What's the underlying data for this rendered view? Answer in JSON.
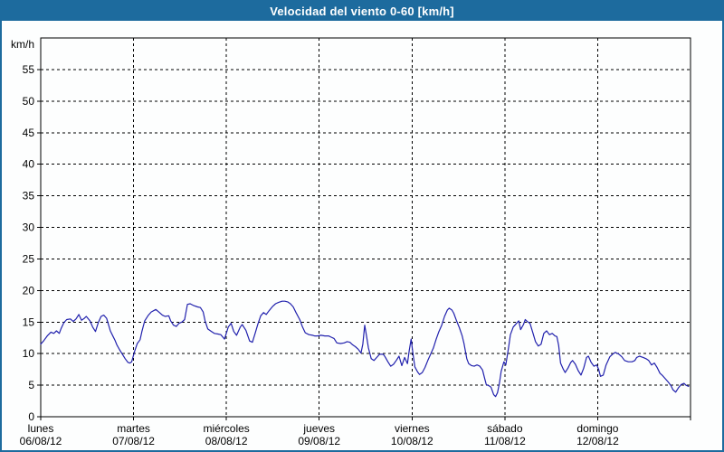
{
  "window": {
    "title": "Velocidad del viento 0-60 [km/h]"
  },
  "colors": {
    "titlebar_bg": "#1d6b9e",
    "frame_border": "#1d6b9e",
    "title_text": "#ffffff",
    "plot_bg": "#fdfefe",
    "axis": "#000000",
    "grid": "#000000",
    "label_text": "#000000",
    "series_line": "#2121ad"
  },
  "chart_data": {
    "type": "line",
    "title": "Velocidad del viento 0-60 [km/h]",
    "ylabel": "km/h",
    "xlabel": "",
    "ylim": [
      0,
      60
    ],
    "ytick_step": 5,
    "yticks": [
      0,
      5,
      10,
      15,
      20,
      25,
      30,
      35,
      40,
      45,
      50,
      55
    ],
    "grid": "dashed",
    "legend_position": "none",
    "x_unit": "days",
    "x_range_days": 7,
    "day_labels": [
      {
        "name": "lunes",
        "date": "06/08/12",
        "day_index": 0
      },
      {
        "name": "martes",
        "date": "07/08/12",
        "day_index": 1
      },
      {
        "name": "miércoles",
        "date": "08/08/12",
        "day_index": 2
      },
      {
        "name": "jueves",
        "date": "09/08/12",
        "day_index": 3
      },
      {
        "name": "viernes",
        "date": "10/08/12",
        "day_index": 4
      },
      {
        "name": "sábado",
        "date": "11/08/12",
        "day_index": 5
      },
      {
        "name": "domingo",
        "date": "12/08/12",
        "day_index": 6
      }
    ],
    "series": [
      {
        "name": "velocidad del viento",
        "units": "km/h",
        "color": "#2121ad",
        "points": [
          [
            0,
            11.5
          ],
          [
            0.03,
            12
          ],
          [
            0.07,
            12.8
          ],
          [
            0.11,
            13.4
          ],
          [
            0.14,
            13.2
          ],
          [
            0.17,
            13.6
          ],
          [
            0.2,
            13.2
          ],
          [
            0.22,
            14
          ],
          [
            0.25,
            14.9
          ],
          [
            0.28,
            15.4
          ],
          [
            0.32,
            15.5
          ],
          [
            0.35,
            15.1
          ],
          [
            0.38,
            15.5
          ],
          [
            0.41,
            16.2
          ],
          [
            0.44,
            15.3
          ],
          [
            0.47,
            15.6
          ],
          [
            0.49,
            15.9
          ],
          [
            0.53,
            15.2
          ],
          [
            0.56,
            14.2
          ],
          [
            0.59,
            13.5
          ],
          [
            0.62,
            14.9
          ],
          [
            0.65,
            15.9
          ],
          [
            0.68,
            16.1
          ],
          [
            0.71,
            15.6
          ],
          [
            0.75,
            13.6
          ],
          [
            0.78,
            12.7
          ],
          [
            0.8,
            12.1
          ],
          [
            0.82,
            11.4
          ],
          [
            0.85,
            10.6
          ],
          [
            0.88,
            9.9
          ],
          [
            0.91,
            9.2
          ],
          [
            0.94,
            8.6
          ],
          [
            0.96,
            8.5
          ],
          [
            0.98,
            8.7
          ],
          [
            1.01,
            10.3
          ],
          [
            1.04,
            11.6
          ],
          [
            1.07,
            12.2
          ],
          [
            1.09,
            13.5
          ],
          [
            1.12,
            15.2
          ],
          [
            1.16,
            16.1
          ],
          [
            1.19,
            16.6
          ],
          [
            1.24,
            17
          ],
          [
            1.28,
            16.5
          ],
          [
            1.31,
            16.1
          ],
          [
            1.34,
            15.9
          ],
          [
            1.38,
            16
          ],
          [
            1.4,
            15.2
          ],
          [
            1.43,
            14.5
          ],
          [
            1.46,
            14.3
          ],
          [
            1.49,
            14.8
          ],
          [
            1.52,
            15
          ],
          [
            1.55,
            15.4
          ],
          [
            1.58,
            17.8
          ],
          [
            1.61,
            17.9
          ],
          [
            1.65,
            17.6
          ],
          [
            1.69,
            17.4
          ],
          [
            1.72,
            17.3
          ],
          [
            1.75,
            16.6
          ],
          [
            1.77,
            15.2
          ],
          [
            1.8,
            13.9
          ],
          [
            1.84,
            13.5
          ],
          [
            1.87,
            13.2
          ],
          [
            1.91,
            13.1
          ],
          [
            1.94,
            13
          ],
          [
            1.98,
            12.3
          ],
          [
            2.02,
            14.2
          ],
          [
            2.05,
            14.8
          ],
          [
            2.08,
            13.5
          ],
          [
            2.11,
            12.9
          ],
          [
            2.15,
            14.2
          ],
          [
            2.17,
            14.6
          ],
          [
            2.21,
            13.7
          ],
          [
            2.25,
            12
          ],
          [
            2.28,
            11.8
          ],
          [
            2.31,
            13.2
          ],
          [
            2.34,
            14.7
          ],
          [
            2.37,
            16
          ],
          [
            2.4,
            16.5
          ],
          [
            2.43,
            16.2
          ],
          [
            2.46,
            16.8
          ],
          [
            2.5,
            17.5
          ],
          [
            2.53,
            17.9
          ],
          [
            2.56,
            18.1
          ],
          [
            2.6,
            18.3
          ],
          [
            2.63,
            18.3
          ],
          [
            2.66,
            18.2
          ],
          [
            2.69,
            17.9
          ],
          [
            2.72,
            17.4
          ],
          [
            2.75,
            16.5
          ],
          [
            2.79,
            15.4
          ],
          [
            2.82,
            14.2
          ],
          [
            2.85,
            13.3
          ],
          [
            2.89,
            13
          ],
          [
            2.93,
            12.9
          ],
          [
            2.95,
            12.8
          ],
          [
            2.98,
            12.8
          ],
          [
            3.02,
            12.9
          ],
          [
            3.06,
            12.8
          ],
          [
            3.1,
            12.8
          ],
          [
            3.13,
            12.6
          ],
          [
            3.16,
            12.4
          ],
          [
            3.19,
            11.7
          ],
          [
            3.23,
            11.6
          ],
          [
            3.27,
            11.7
          ],
          [
            3.3,
            11.9
          ],
          [
            3.33,
            11.8
          ],
          [
            3.36,
            11.4
          ],
          [
            3.39,
            11.1
          ],
          [
            3.42,
            10.7
          ],
          [
            3.45,
            10.1
          ],
          [
            3.47,
            11.5
          ],
          [
            3.49,
            14.5
          ],
          [
            3.51,
            12.8
          ],
          [
            3.53,
            10.9
          ],
          [
            3.56,
            9.2
          ],
          [
            3.59,
            8.9
          ],
          [
            3.62,
            9.4
          ],
          [
            3.65,
            9.9
          ],
          [
            3.69,
            9.9
          ],
          [
            3.71,
            9.5
          ],
          [
            3.74,
            8.7
          ],
          [
            3.77,
            8
          ],
          [
            3.8,
            8.3
          ],
          [
            3.83,
            8.9
          ],
          [
            3.86,
            9.6
          ],
          [
            3.89,
            8.1
          ],
          [
            3.92,
            9.4
          ],
          [
            3.95,
            8.4
          ],
          [
            3.97,
            10.5
          ],
          [
            3.99,
            12.3
          ],
          [
            4.01,
            10
          ],
          [
            4.03,
            7.9
          ],
          [
            4.06,
            7.1
          ],
          [
            4.08,
            6.7
          ],
          [
            4.11,
            7
          ],
          [
            4.14,
            7.8
          ],
          [
            4.17,
            8.9
          ],
          [
            4.2,
            9.9
          ],
          [
            4.23,
            10.9
          ],
          [
            4.26,
            12.3
          ],
          [
            4.29,
            13.5
          ],
          [
            4.32,
            14.5
          ],
          [
            4.35,
            15.9
          ],
          [
            4.38,
            16.9
          ],
          [
            4.4,
            17.2
          ],
          [
            4.43,
            16.9
          ],
          [
            4.45,
            16.4
          ],
          [
            4.48,
            15.2
          ],
          [
            4.51,
            14.1
          ],
          [
            4.54,
            12.8
          ],
          [
            4.56,
            11.6
          ],
          [
            4.59,
            9.2
          ],
          [
            4.61,
            8.4
          ],
          [
            4.64,
            8.1
          ],
          [
            4.67,
            8
          ],
          [
            4.7,
            8.2
          ],
          [
            4.73,
            8
          ],
          [
            4.76,
            7.4
          ],
          [
            4.78,
            6.2
          ],
          [
            4.8,
            5.1
          ],
          [
            4.83,
            4.9
          ],
          [
            4.85,
            4.7
          ],
          [
            4.88,
            3.5
          ],
          [
            4.9,
            3.2
          ],
          [
            4.92,
            3.8
          ],
          [
            4.94,
            5.2
          ],
          [
            4.96,
            7.2
          ],
          [
            4.99,
            8.7
          ],
          [
            5.01,
            8.2
          ],
          [
            5.04,
            11
          ],
          [
            5.06,
            13
          ],
          [
            5.09,
            14.2
          ],
          [
            5.12,
            14.7
          ],
          [
            5.15,
            15.2
          ],
          [
            5.17,
            13.8
          ],
          [
            5.2,
            14.6
          ],
          [
            5.22,
            15.4
          ],
          [
            5.24,
            15.1
          ],
          [
            5.27,
            14.8
          ],
          [
            5.3,
            13.4
          ],
          [
            5.33,
            11.9
          ],
          [
            5.36,
            11.2
          ],
          [
            5.39,
            11.5
          ],
          [
            5.42,
            13.2
          ],
          [
            5.45,
            13.6
          ],
          [
            5.48,
            13
          ],
          [
            5.51,
            13.2
          ],
          [
            5.54,
            12.8
          ],
          [
            5.56,
            12.7
          ],
          [
            5.58,
            11.3
          ],
          [
            5.6,
            8.5
          ],
          [
            5.63,
            7.5
          ],
          [
            5.65,
            7
          ],
          [
            5.68,
            7.7
          ],
          [
            5.71,
            8.6
          ],
          [
            5.73,
            8.9
          ],
          [
            5.76,
            8.3
          ],
          [
            5.79,
            7.3
          ],
          [
            5.82,
            6.6
          ],
          [
            5.85,
            7.7
          ],
          [
            5.88,
            9.4
          ],
          [
            5.9,
            9.6
          ],
          [
            5.93,
            8.6
          ],
          [
            5.96,
            8
          ],
          [
            5.99,
            8.2
          ],
          [
            6.01,
            7.5
          ],
          [
            6.03,
            6.4
          ],
          [
            6.06,
            6.6
          ],
          [
            6.09,
            8.2
          ],
          [
            6.13,
            9.5
          ],
          [
            6.16,
            9.9
          ],
          [
            6.19,
            10.2
          ],
          [
            6.23,
            9.9
          ],
          [
            6.26,
            9.5
          ],
          [
            6.29,
            8.9
          ],
          [
            6.33,
            8.7
          ],
          [
            6.37,
            8.7
          ],
          [
            6.4,
            8.9
          ],
          [
            6.42,
            9.4
          ],
          [
            6.45,
            9.6
          ],
          [
            6.49,
            9.4
          ],
          [
            6.52,
            9.2
          ],
          [
            6.55,
            8.9
          ],
          [
            6.58,
            8.2
          ],
          [
            6.61,
            8.5
          ],
          [
            6.64,
            7.8
          ],
          [
            6.67,
            6.9
          ],
          [
            6.7,
            6.5
          ],
          [
            6.73,
            6
          ],
          [
            6.76,
            5.5
          ],
          [
            6.79,
            4.9
          ],
          [
            6.81,
            4.3
          ],
          [
            6.84,
            3.9
          ],
          [
            6.87,
            4.6
          ],
          [
            6.9,
            5.1
          ],
          [
            6.93,
            5.3
          ],
          [
            6.95,
            5
          ],
          [
            6.98,
            4.8
          ]
        ]
      }
    ]
  }
}
